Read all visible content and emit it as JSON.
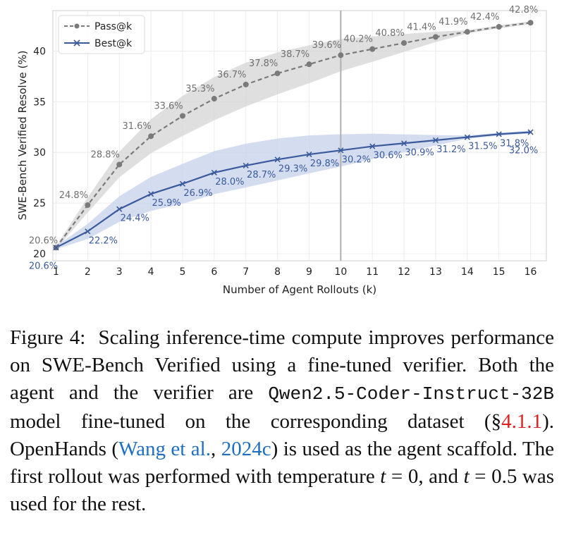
{
  "chart_data": {
    "type": "line",
    "xlabel": "Number of Agent Rollouts (k)",
    "ylabel": "SWE-Bench Verified Resolve (%)",
    "x": [
      1,
      2,
      3,
      4,
      5,
      6,
      7,
      8,
      9,
      10,
      11,
      12,
      13,
      14,
      15,
      16
    ],
    "xlim": [
      0.9,
      16.5
    ],
    "ylim": [
      19.3,
      44.0
    ],
    "yticks": [
      20,
      25,
      30,
      35,
      40
    ],
    "vline_x": 10,
    "grid": true,
    "legend_position": "top-left",
    "series": [
      {
        "name": "Pass@k",
        "values": [
          20.6,
          24.8,
          28.8,
          31.6,
          33.6,
          35.3,
          36.7,
          37.8,
          38.7,
          39.6,
          40.2,
          40.8,
          41.4,
          41.9,
          42.4,
          42.8
        ],
        "labels": [
          "20.6%",
          "24.8%",
          "28.8%",
          "31.6%",
          "33.6%",
          "35.3%",
          "36.7%",
          "37.8%",
          "38.7%",
          "39.6%",
          "40.2%",
          "40.8%",
          "41.4%",
          "41.9%",
          "42.4%",
          "42.8%"
        ],
        "color": "#7a7a7a",
        "band_color": "#d4d4d4",
        "linestyle": "dashed",
        "marker": "circle"
      },
      {
        "name": "Best@k",
        "values": [
          20.6,
          22.2,
          24.4,
          25.9,
          26.9,
          28.0,
          28.7,
          29.3,
          29.8,
          30.2,
          30.6,
          30.9,
          31.2,
          31.5,
          31.8,
          32.0
        ],
        "labels": [
          "20.6%",
          "22.2%",
          "24.4%",
          "25.9%",
          "26.9%",
          "28.0%",
          "28.7%",
          "29.3%",
          "29.8%",
          "30.2%",
          "30.6%",
          "30.9%",
          "31.2%",
          "31.5%",
          "31.8%",
          "32.0%"
        ],
        "color": "#3a5a9c",
        "band_color": "#c5d1ea",
        "linestyle": "solid",
        "marker": "x"
      }
    ]
  },
  "caption": {
    "figure_label": "Figure 4:",
    "part1": "Scaling inference-time compute improves performance on SWE-Bench Verified using a fine-tuned verifier. Both the agent and the verifier are",
    "model_name": "Qwen2.5-Coder-Instruct-32B",
    "part2": "model fine-tuned on the corresponding dataset (§",
    "section_ref": "4.1.1",
    "part3": "). OpenHands (",
    "cite_author": "Wang et al.",
    "cite_sep": ", ",
    "cite_year": "2024c",
    "part4": ") is used as the agent scaffold. The first rollout was performed with temperature",
    "t_symbol": "t",
    "t0_text": " = 0, and ",
    "t05_text": " = 0.5 was used for the rest."
  }
}
